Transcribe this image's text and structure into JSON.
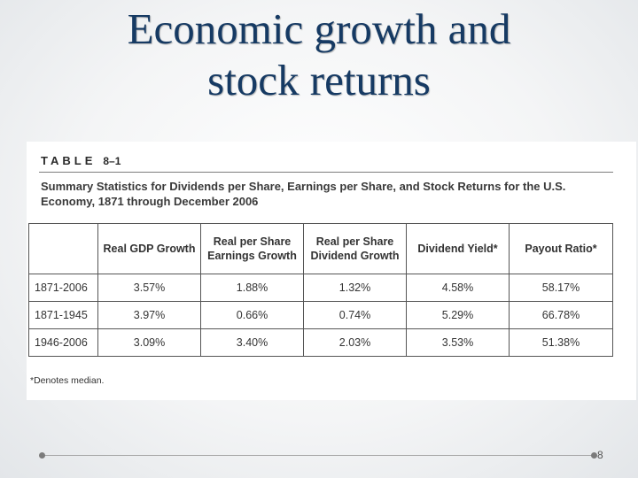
{
  "slide": {
    "title_line1": "Economic growth and",
    "title_line2": "stock returns",
    "page_number": "8"
  },
  "table": {
    "label": "TABLE",
    "number": "8–1",
    "description": "Summary Statistics for Dividends per Share, Earnings per Share, and Stock Returns for the U.S. Economy, 1871 through December 2006",
    "columns": [
      "",
      "Real GDP Growth",
      "Real per Share Earnings Growth",
      "Real per Share Dividend Growth",
      "Dividend Yield*",
      "Payout Ratio*"
    ],
    "rows": [
      {
        "period": "1871-2006",
        "values": [
          "3.57%",
          "1.88%",
          "1.32%",
          "4.58%",
          "58.17%"
        ]
      },
      {
        "period": "1871-1945",
        "values": [
          "3.97%",
          "0.66%",
          "0.74%",
          "5.29%",
          "66.78%"
        ]
      },
      {
        "period": "1946-2006",
        "values": [
          "3.09%",
          "3.40%",
          "2.03%",
          "3.53%",
          "51.38%"
        ]
      }
    ],
    "footnote": "*Denotes median."
  },
  "colors": {
    "title": "#163a63",
    "background": "#eef0f2"
  }
}
